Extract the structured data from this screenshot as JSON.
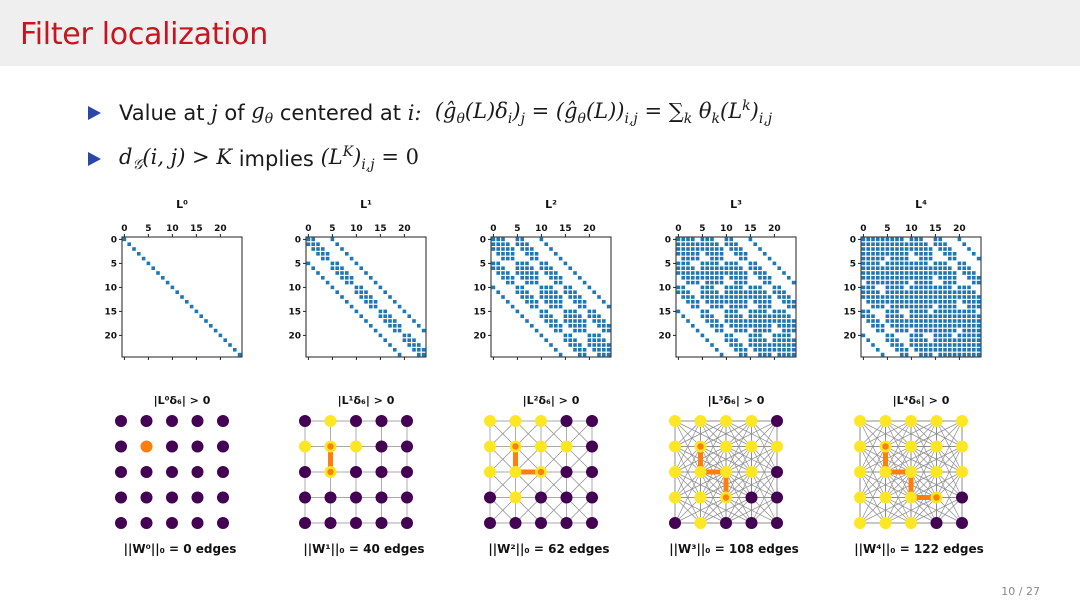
{
  "slide": {
    "title": "Filter localization",
    "page": "10 / 27"
  },
  "bullets": {
    "b1_text": "Value at",
    "b1_j": "j",
    "b1_of": "of",
    "b1_g": "g",
    "b1_theta": "θ",
    "b1_centered": "centered at",
    "b1_i": "i:",
    "b1_formula": "(ĝ",
    "b1_formula_rest": "(L)δ",
    "b1_formula_i": "i",
    "b1_formula_close": ")",
    "b1_formula_j": "j",
    "b1_eq1": " = (ĝ",
    "b1_eq1_rest": "(L))",
    "b1_eq1_sub": "i,j",
    "b1_eq2": " = ∑",
    "b1_eq2_k": "k",
    "b1_eq2_rest": " θ",
    "b1_eq2_k2": "k",
    "b1_eq2_L": "(L",
    "b1_eq2_sup": "k",
    "b1_eq2_close": ")",
    "b1_eq2_sub": "i,j",
    "b2_d": "d",
    "b2_G": "𝒢",
    "b2_args": "(i, j) > K",
    "b2_implies": "implies",
    "b2_L": "(L",
    "b2_sup": "K",
    "b2_close": ")",
    "b2_sub": "i,j",
    "b2_eq": " = 0"
  },
  "chart_data": {
    "type": "heatmap",
    "matrix_size": 25,
    "grid_size": 5,
    "axis_ticks": [
      0,
      5,
      10,
      15,
      20
    ],
    "center_node": [
      1,
      1
    ],
    "powers": [
      {
        "matrix_title": "L⁰",
        "node_caption": "|L⁰δ₆| > 0",
        "edge_caption": "||W⁰||₀ = 0 edges",
        "edges": 0
      },
      {
        "matrix_title": "L¹",
        "node_caption": "|L¹δ₆| > 0",
        "edge_caption": "||W¹||₀ = 40 edges",
        "edges": 40
      },
      {
        "matrix_title": "L²",
        "node_caption": "|L²δ₆| > 0",
        "edge_caption": "||W²||₀ = 62 edges",
        "edges": 62
      },
      {
        "matrix_title": "L³",
        "node_caption": "|L³δ₆| > 0",
        "edge_caption": "||W³||₀ = 108 edges",
        "edges": 108
      },
      {
        "matrix_title": "L⁴",
        "node_caption": "|L⁴δ₆| > 0",
        "edge_caption": "||W⁴||₀ = 122 edges",
        "edges": 122
      }
    ],
    "colors": {
      "matrix_dot": "#1f77b4",
      "node_off": "#440154",
      "node_on": "#fde725",
      "node_center": "#ff7f0e",
      "path": "#ff7f0e",
      "edge": "#8c8c8c"
    }
  }
}
